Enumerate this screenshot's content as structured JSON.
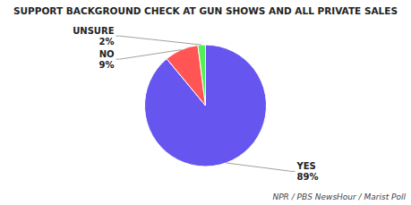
{
  "chart_data": {
    "type": "pie",
    "title": "SUPPORT BACKGROUND CHECK AT GUN SHOWS AND ALL PRIVATE SALES",
    "categories": [
      "YES",
      "NO",
      "UNSURE"
    ],
    "values": [
      89,
      9,
      2
    ],
    "value_labels": [
      "89%",
      "9%",
      "2%"
    ],
    "colors": [
      "#6655ee",
      "#ff5555",
      "#55ee55"
    ],
    "data_labels": true,
    "annotations": [
      "NPR / PBS NewsHour / Marist Poll"
    ]
  }
}
